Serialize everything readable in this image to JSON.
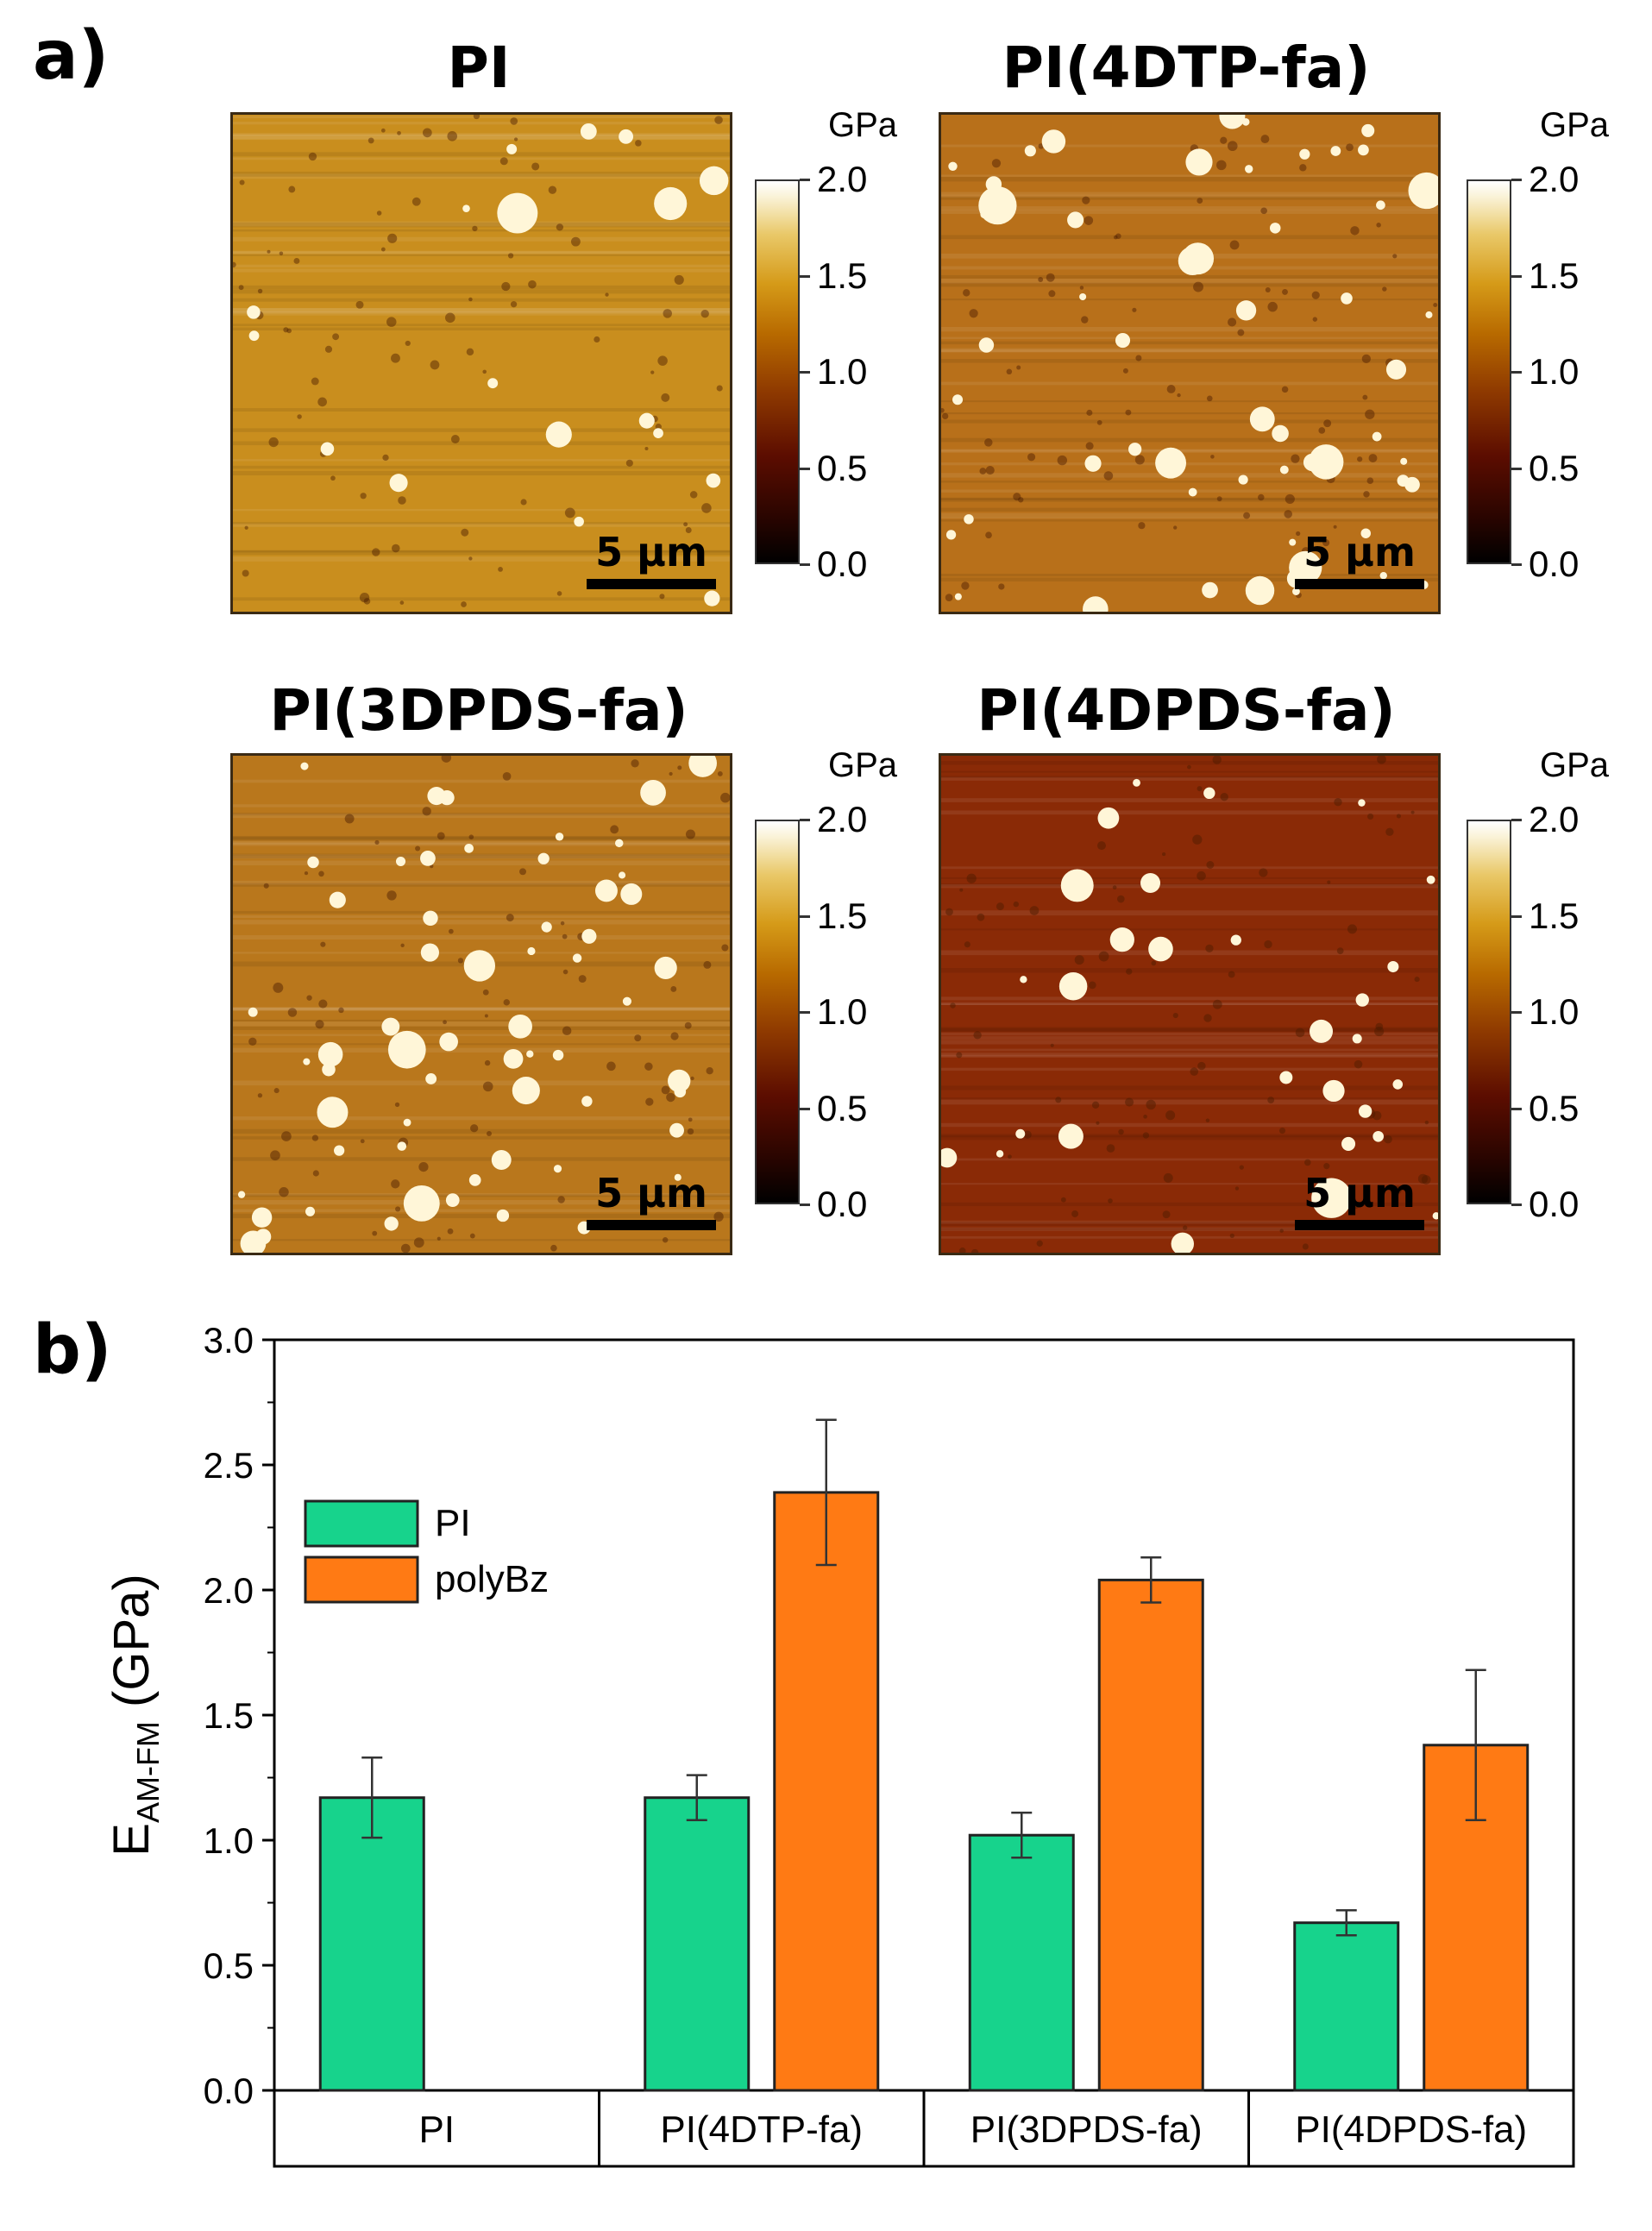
{
  "panel_a_label": "a)",
  "panel_b_label": "b)",
  "afm_maps": [
    {
      "title": "PI",
      "tone": "#c98e1e",
      "scale_label": "5 µm"
    },
    {
      "title": "PI(4DTP-fa)",
      "tone": "#b8701a",
      "scale_label": "5 µm"
    },
    {
      "title": "PI(3DPDS-fa)",
      "tone": "#b9771c",
      "scale_label": "5 µm"
    },
    {
      "title": "PI(4DPDS-fa)",
      "tone": "#8a2a06",
      "scale_label": "5 µm"
    }
  ],
  "colorbar": {
    "unit": "GPa",
    "ticks": [
      "2.0",
      "1.5",
      "1.0",
      "0.5",
      "0.0"
    ]
  },
  "colors": {
    "PI": "#17d38c",
    "polyBz": "#ff7a14"
  },
  "chart_data": {
    "type": "bar",
    "title": "",
    "ylabel_main": "E",
    "ylabel_sub": "AM-FM",
    "ylabel_unit": "(GPa)",
    "xlabel": "",
    "ylim": [
      0,
      3.0
    ],
    "yticks": [
      "0.0",
      "0.5",
      "1.0",
      "1.5",
      "2.0",
      "2.5",
      "3.0"
    ],
    "categories": [
      "PI",
      "PI(4DTP-fa)",
      "PI(3DPDS-fa)",
      "PI(4DPDS-fa)"
    ],
    "legend": [
      "PI",
      "polyBz"
    ],
    "legend_position": "top-left",
    "series": [
      {
        "name": "PI",
        "values": [
          1.17,
          1.17,
          1.02,
          0.67
        ],
        "errors": [
          0.16,
          0.09,
          0.09,
          0.05
        ]
      },
      {
        "name": "polyBz",
        "values": [
          null,
          2.39,
          2.04,
          1.38
        ],
        "errors": [
          null,
          0.29,
          0.09,
          0.3
        ]
      }
    ]
  }
}
